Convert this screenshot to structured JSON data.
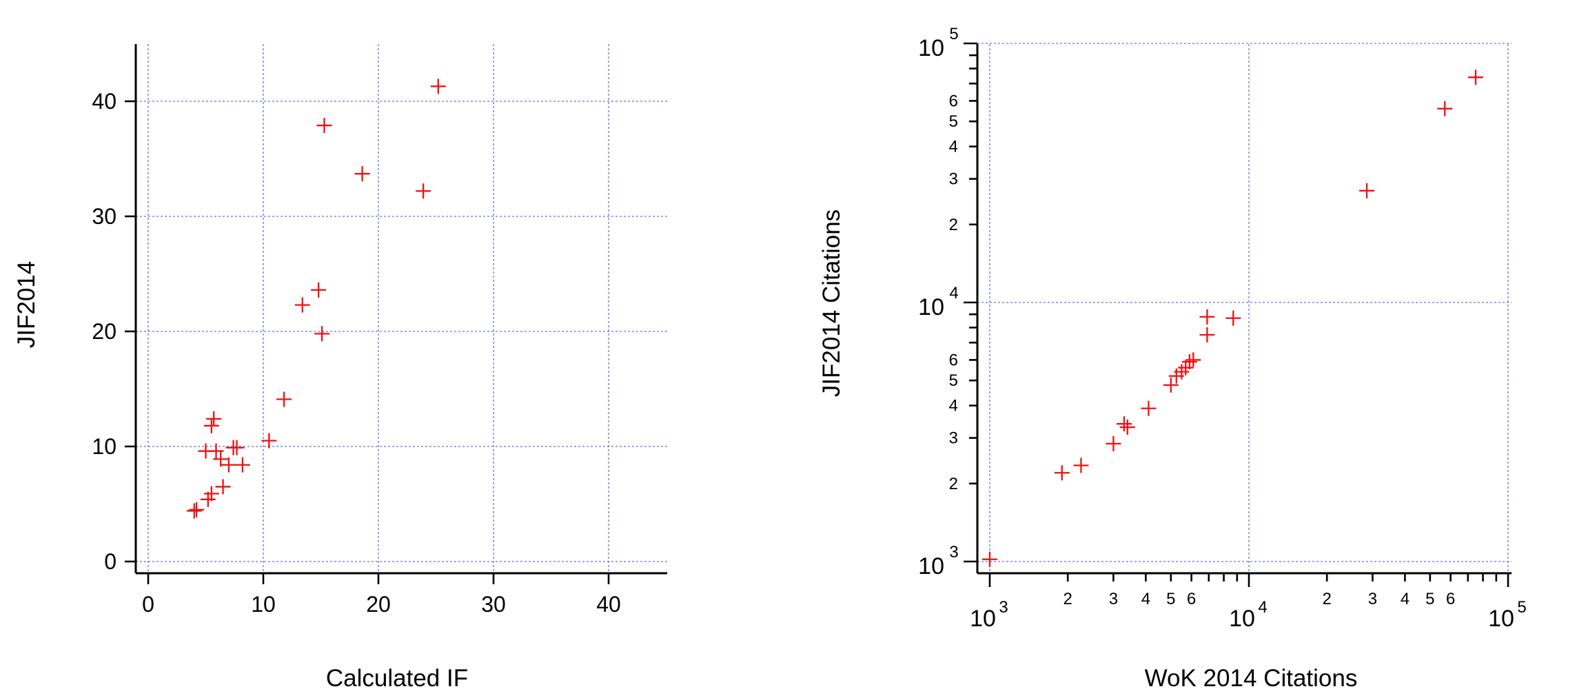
{
  "chart_data": [
    {
      "type": "scatter",
      "xlabel": "Calculated IF",
      "ylabel": "JIF2014",
      "xlim": [
        -1,
        45
      ],
      "ylim": [
        -1,
        45
      ],
      "xticks": [
        0,
        10,
        20,
        30,
        40
      ],
      "yticks": [
        0,
        10,
        20,
        30,
        40
      ],
      "xscale": "linear",
      "yscale": "linear",
      "grid": true,
      "marker": "cross",
      "marker_color": "#ee1111",
      "grid_color": "#6a6ae8",
      "points": [
        [
          4.0,
          4.4
        ],
        [
          4.2,
          4.5
        ],
        [
          5.2,
          5.4
        ],
        [
          5.5,
          5.9
        ],
        [
          6.5,
          6.5
        ],
        [
          5.0,
          9.6
        ],
        [
          5.9,
          9.6
        ],
        [
          6.3,
          8.9
        ],
        [
          7.0,
          8.4
        ],
        [
          8.2,
          8.4
        ],
        [
          7.4,
          9.9
        ],
        [
          7.7,
          9.9
        ],
        [
          5.5,
          11.8
        ],
        [
          5.7,
          12.4
        ],
        [
          10.5,
          10.5
        ],
        [
          11.8,
          14.1
        ],
        [
          13.4,
          22.3
        ],
        [
          14.8,
          23.6
        ],
        [
          15.1,
          19.8
        ],
        [
          15.3,
          37.9
        ],
        [
          18.6,
          33.7
        ],
        [
          23.9,
          32.2
        ],
        [
          25.2,
          41.3
        ]
      ]
    },
    {
      "type": "scatter",
      "xlabel": "WoK 2014 Citations",
      "ylabel": "JIF2014 Citations",
      "xlim": [
        900,
        105000
      ],
      "ylim": [
        900,
        105000
      ],
      "xscale": "log",
      "yscale": "log",
      "grid": true,
      "marker": "cross",
      "marker_color": "#ee1111",
      "grid_color": "#6a6ae8",
      "major_ticks": [
        {
          "value": 1000,
          "base": "10",
          "exp": "3"
        },
        {
          "value": 10000,
          "base": "10",
          "exp": "4"
        },
        {
          "value": 100000,
          "base": "10",
          "exp": "5"
        }
      ],
      "minor_labels": [
        "2",
        "3",
        "4",
        "5",
        "6"
      ],
      "points": [
        [
          1000,
          1020
        ],
        [
          1900,
          2200
        ],
        [
          2250,
          2350
        ],
        [
          3000,
          2850
        ],
        [
          3300,
          3400
        ],
        [
          3400,
          3300
        ],
        [
          4100,
          3900
        ],
        [
          5000,
          4800
        ],
        [
          5250,
          5200
        ],
        [
          5500,
          5400
        ],
        [
          5700,
          5600
        ],
        [
          5900,
          5900
        ],
        [
          6100,
          6000
        ],
        [
          6900,
          7500
        ],
        [
          6900,
          8800
        ],
        [
          8700,
          8700
        ],
        [
          28500,
          27000
        ],
        [
          57000,
          56000
        ],
        [
          75000,
          74000
        ]
      ]
    }
  ]
}
